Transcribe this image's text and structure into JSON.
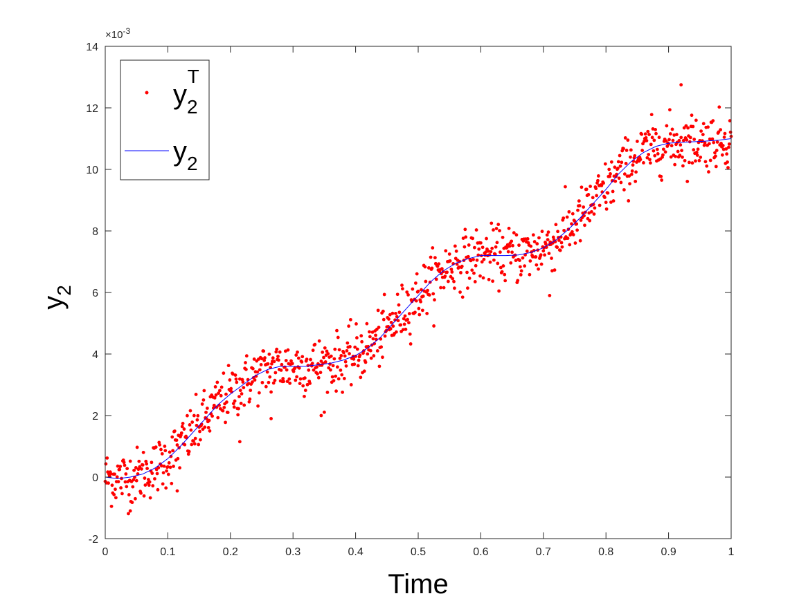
{
  "chart_data": {
    "type": "scatter",
    "title": "",
    "xlabel": "Time",
    "ylabel": {
      "base": "y",
      "sub": "2"
    },
    "xlim": [
      0,
      1
    ],
    "ylim": [
      -2,
      14
    ],
    "y_exponent_label": "×10",
    "y_exponent_power": "-3",
    "x_ticks": [
      "0",
      "0.1",
      "0.2",
      "0.3",
      "0.4",
      "0.5",
      "0.6",
      "0.7",
      "0.8",
      "0.9",
      "1"
    ],
    "y_ticks": [
      "-2",
      "0",
      "2",
      "4",
      "6",
      "8",
      "10",
      "12",
      "14"
    ],
    "grid": false,
    "legend_position": "top-left",
    "series": [
      {
        "name": {
          "base": "y",
          "sub": "2",
          "sup": "T"
        },
        "kind": "scatter",
        "color": "#ff0000",
        "description": "noisy measurements, ~1000 points scattered about the model curve",
        "outliers": [
          [
            0.92,
            12.75
          ],
          [
            0.345,
            2.0
          ],
          [
            0.04,
            -1.1
          ],
          [
            0.71,
            5.9
          ],
          [
            0.265,
            1.9
          ],
          [
            0.215,
            1.15
          ],
          [
            0.115,
            -0.45
          ]
        ]
      },
      {
        "name": {
          "base": "y",
          "sub": "2"
        },
        "kind": "line",
        "color": "#0000ff",
        "x": [
          0,
          0.02,
          0.04,
          0.06,
          0.08,
          0.1,
          0.12,
          0.14,
          0.16,
          0.18,
          0.2,
          0.22,
          0.24,
          0.26,
          0.28,
          0.3,
          0.32,
          0.34,
          0.36,
          0.38,
          0.4,
          0.42,
          0.44,
          0.46,
          0.48,
          0.5,
          0.52,
          0.54,
          0.56,
          0.58,
          0.6,
          0.62,
          0.64,
          0.66,
          0.68,
          0.7,
          0.72,
          0.74,
          0.76,
          0.78,
          0.8,
          0.82,
          0.84,
          0.86,
          0.88,
          0.9,
          0.92,
          0.94,
          0.96,
          0.98,
          1.0
        ],
        "y": [
          0.0,
          -0.05,
          0.0,
          0.1,
          0.3,
          0.6,
          1.0,
          1.45,
          1.9,
          2.35,
          2.7,
          3.0,
          3.3,
          3.5,
          3.6,
          3.6,
          3.6,
          3.65,
          3.7,
          3.8,
          3.95,
          4.2,
          4.55,
          5.0,
          5.45,
          5.9,
          6.35,
          6.7,
          6.95,
          7.1,
          7.2,
          7.2,
          7.2,
          7.22,
          7.3,
          7.45,
          7.7,
          8.05,
          8.45,
          8.9,
          9.35,
          9.85,
          10.25,
          10.55,
          10.75,
          10.85,
          10.88,
          10.9,
          10.92,
          10.95,
          11.0
        ]
      }
    ]
  }
}
